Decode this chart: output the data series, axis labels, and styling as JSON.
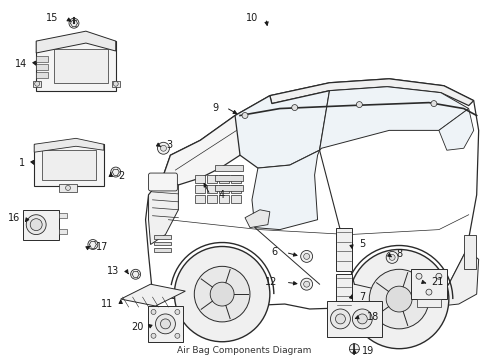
{
  "title": "Air Bag Components Diagram",
  "background_color": "#ffffff",
  "fig_width": 4.89,
  "fig_height": 3.6,
  "dpi": 100,
  "line_color": "#2a2a2a",
  "text_color": "#1a1a1a",
  "label_fontsize": 7.0,
  "fill_color": "#ffffff",
  "component_fill": "#f0f0f0"
}
